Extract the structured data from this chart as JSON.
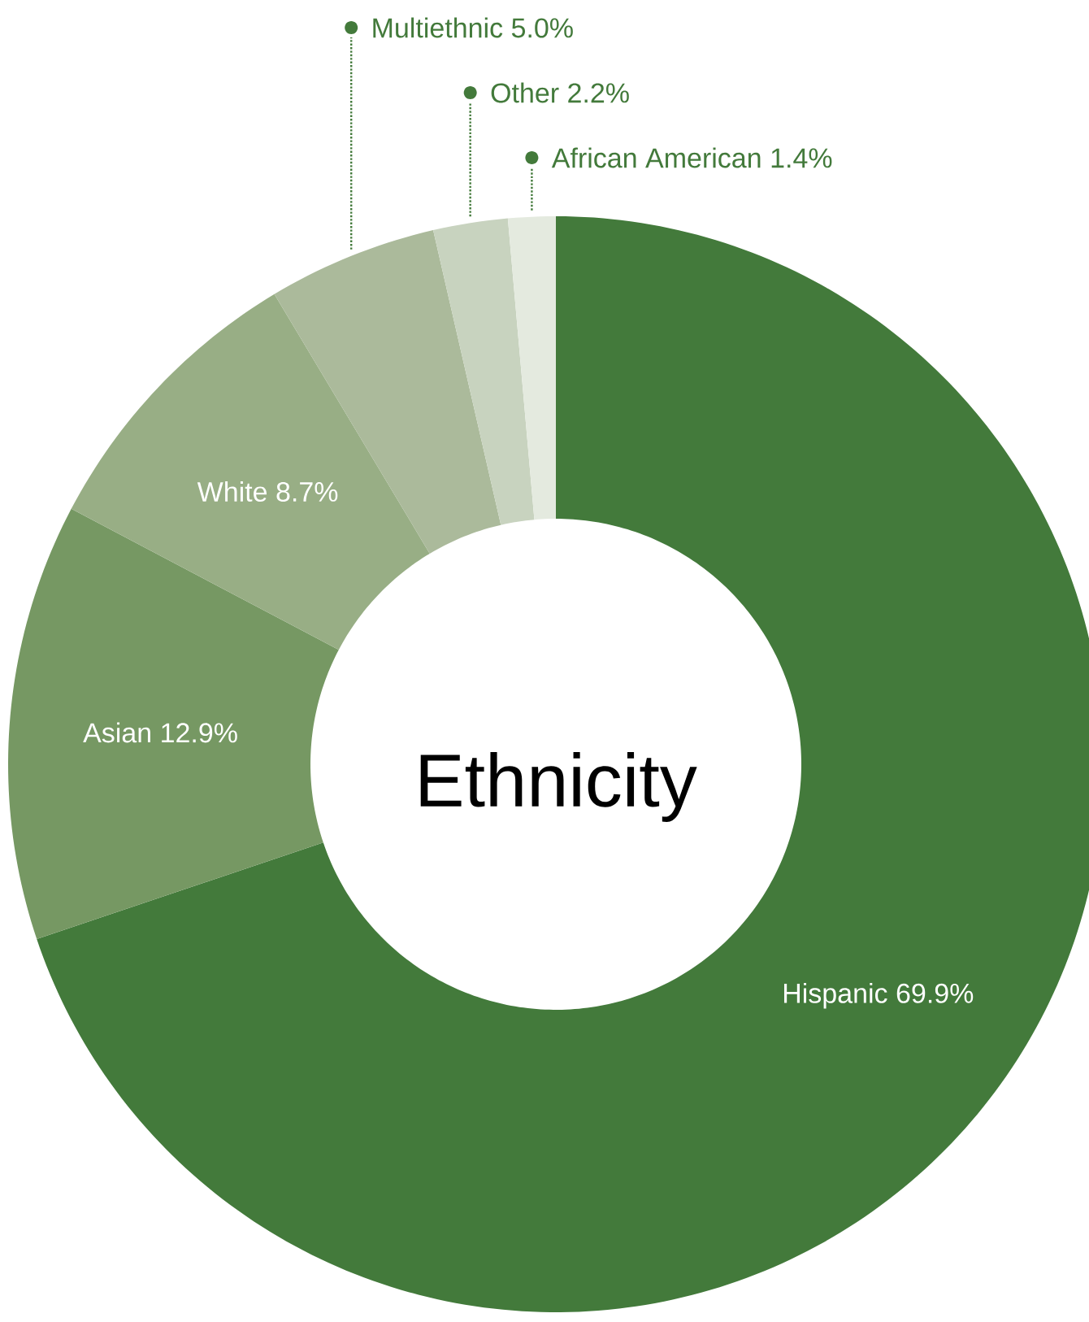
{
  "chart_data": {
    "type": "donut",
    "title": "Ethnicity",
    "categories": [
      "Hispanic",
      "Asian",
      "White",
      "Multiethnic",
      "Other",
      "African American"
    ],
    "values": [
      69.9,
      12.9,
      8.7,
      5.0,
      2.2,
      1.4
    ],
    "colors": [
      "#437a3b",
      "#769863",
      "#98ae85",
      "#abba9b",
      "#c8d3bf",
      "#e4eadf"
    ],
    "value_labels": [
      "69.9%",
      "12.9%",
      "8.7%",
      "5.0%",
      "2.2%",
      "1.4%"
    ]
  }
}
